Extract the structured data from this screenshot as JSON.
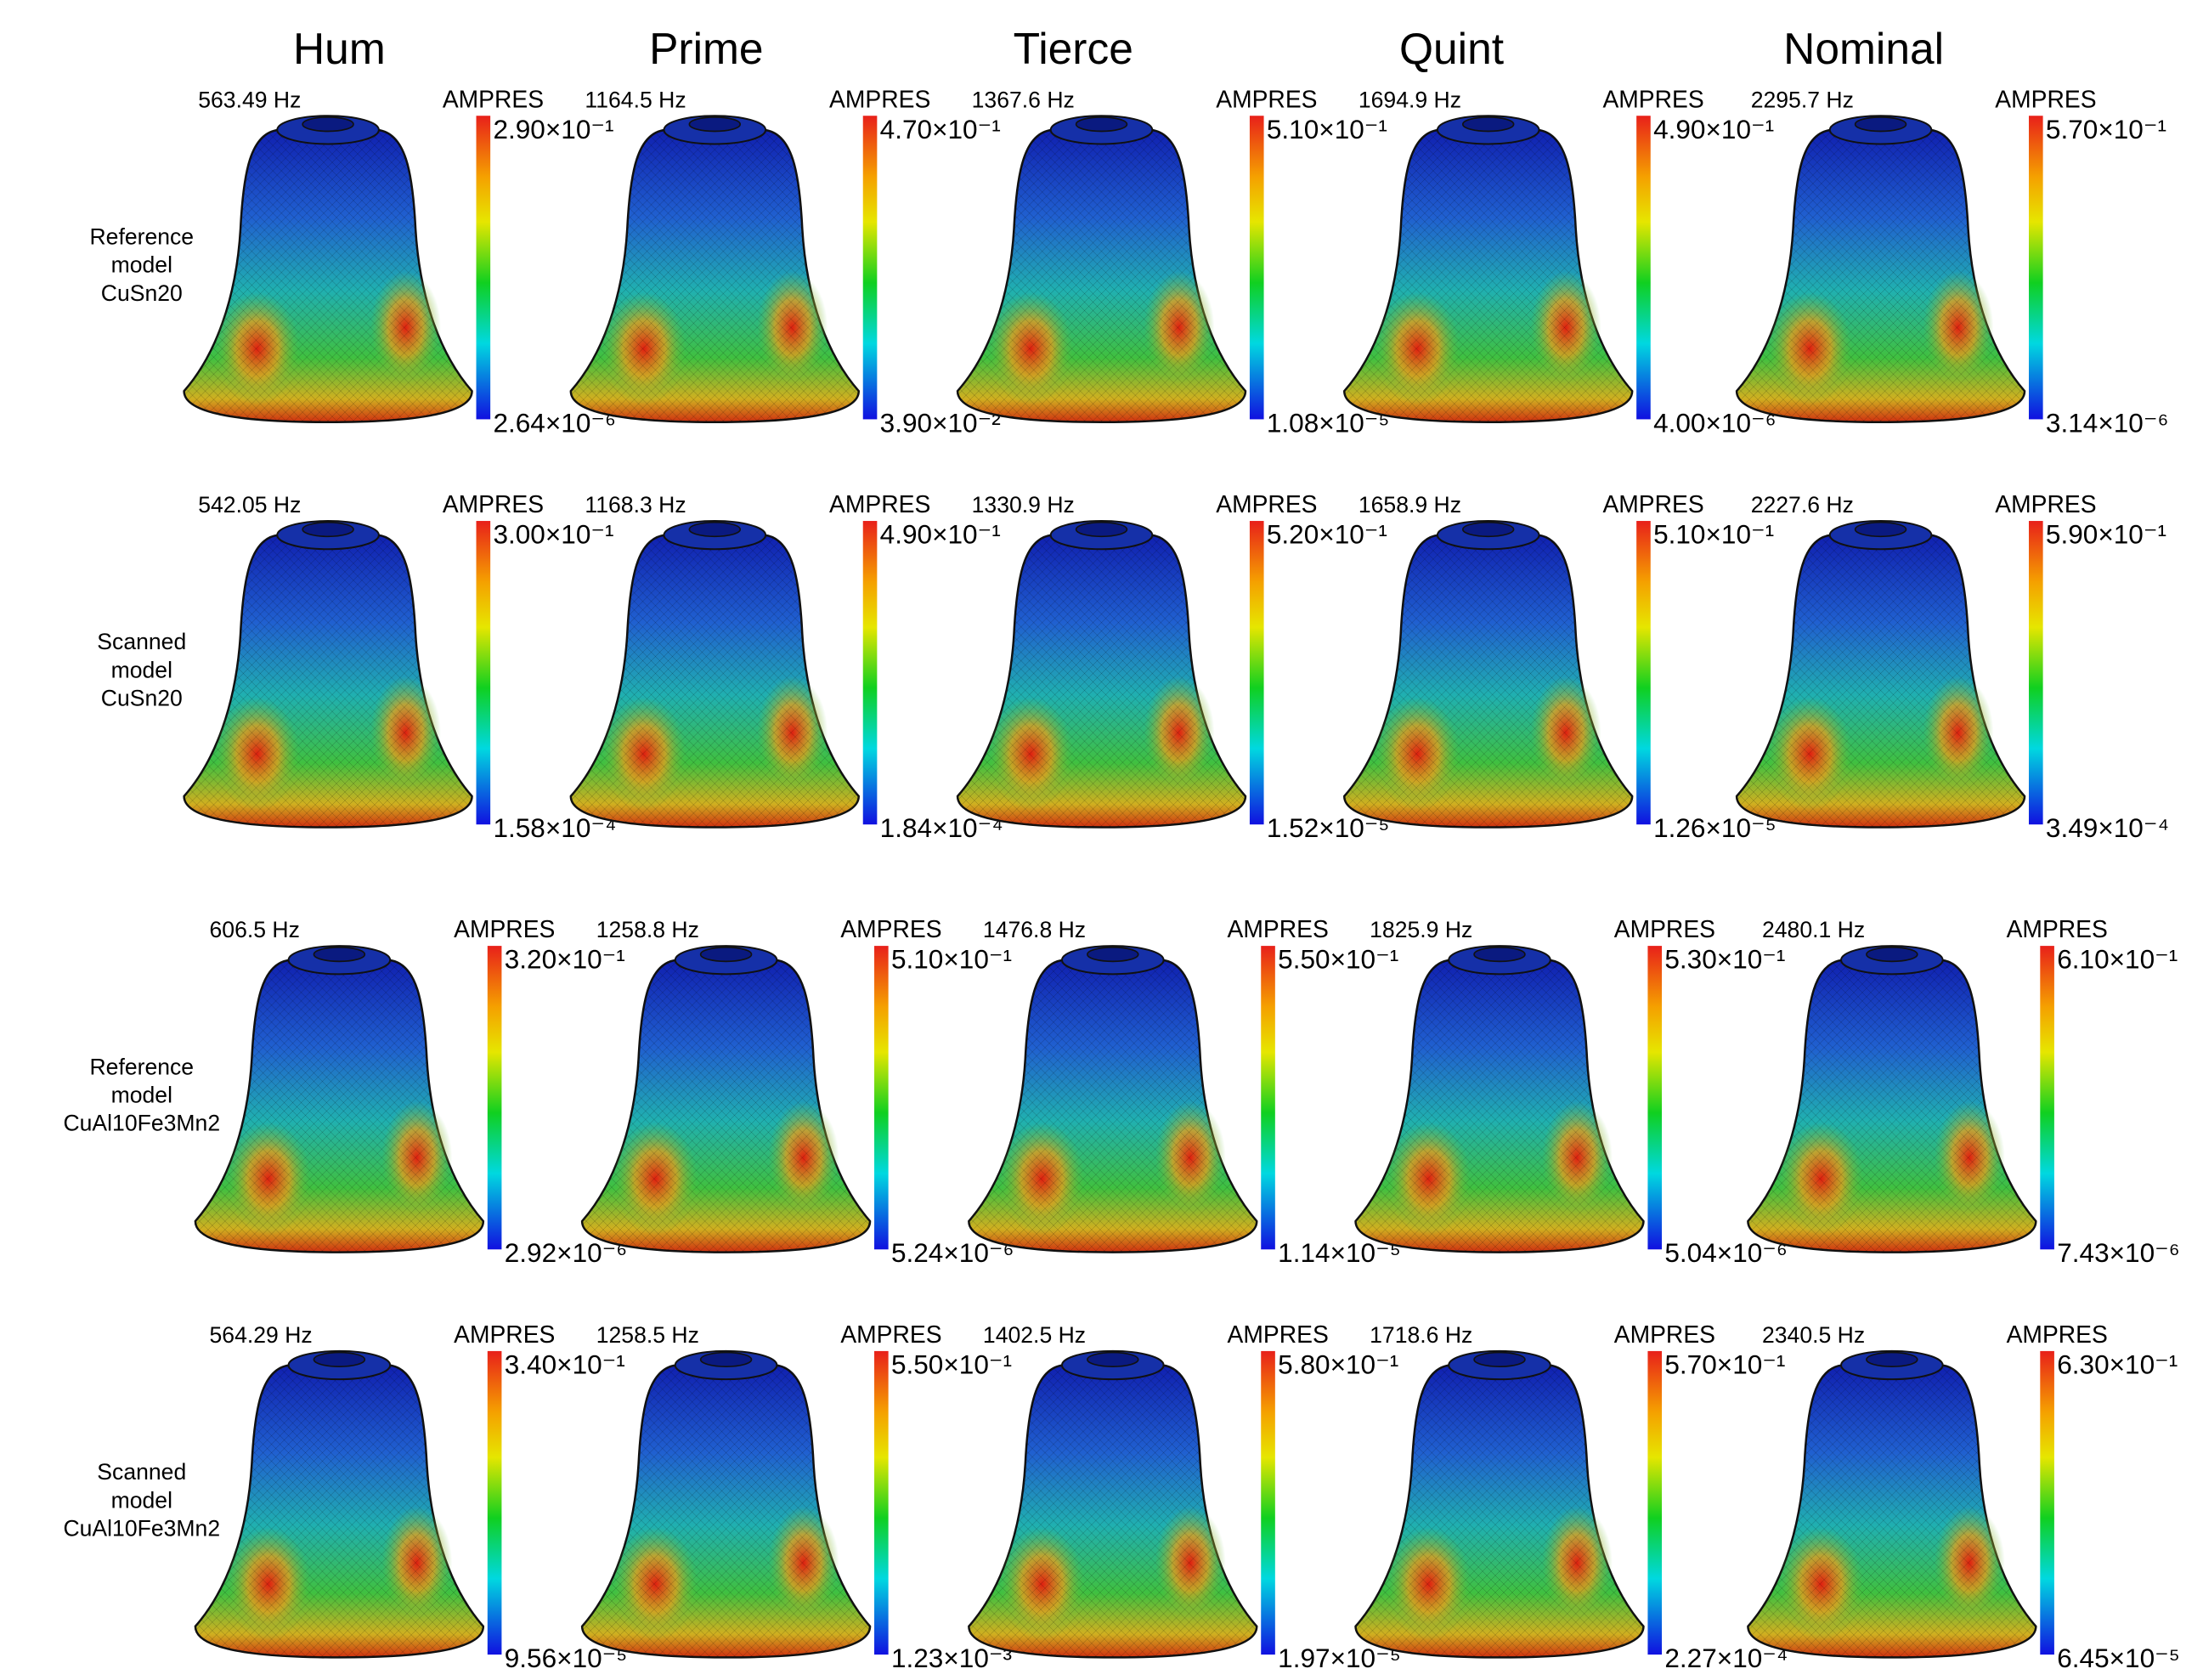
{
  "columns": [
    "Hum",
    "Prime",
    "Tierce",
    "Quint",
    "Nominal"
  ],
  "rows": [
    {
      "label": [
        "Reference",
        "model",
        "CuSn20"
      ],
      "cells": [
        {
          "frequency": "563.49 Hz",
          "unit": "AMPRES",
          "max": "2.90×10⁻¹",
          "min": "2.64×10⁻⁶"
        },
        {
          "frequency": "1164.5 Hz",
          "unit": "AMPRES",
          "max": "4.70×10⁻¹",
          "min": "3.90×10⁻²"
        },
        {
          "frequency": "1367.6 Hz",
          "unit": "AMPRES",
          "max": "5.10×10⁻¹",
          "min": "1.08×10⁻⁵"
        },
        {
          "frequency": "1694.9 Hz",
          "unit": "AMPRES",
          "max": "4.90×10⁻¹",
          "min": "4.00×10⁻⁶"
        },
        {
          "frequency": "2295.7 Hz",
          "unit": "AMPRES",
          "max": "5.70×10⁻¹",
          "min": "3.14×10⁻⁶"
        }
      ]
    },
    {
      "label": [
        "Scanned",
        "model",
        "CuSn20"
      ],
      "cells": [
        {
          "frequency": "542.05 Hz",
          "unit": "AMPRES",
          "max": "3.00×10⁻¹",
          "min": "1.58×10⁻⁴"
        },
        {
          "frequency": "1168.3 Hz",
          "unit": "AMPRES",
          "max": "4.90×10⁻¹",
          "min": "1.84×10⁻⁴"
        },
        {
          "frequency": "1330.9 Hz",
          "unit": "AMPRES",
          "max": "5.20×10⁻¹",
          "min": "1.52×10⁻⁵"
        },
        {
          "frequency": "1658.9 Hz",
          "unit": "AMPRES",
          "max": "5.10×10⁻¹",
          "min": "1.26×10⁻⁵"
        },
        {
          "frequency": "2227.6 Hz",
          "unit": "AMPRES",
          "max": "5.90×10⁻¹",
          "min": "3.49×10⁻⁴"
        }
      ]
    },
    {
      "label": [
        "Reference",
        "model",
        "CuAl10Fe3Mn2"
      ],
      "cells": [
        {
          "frequency": "606.5 Hz",
          "unit": "AMPRES",
          "max": "3.20×10⁻¹",
          "min": "2.92×10⁻⁶"
        },
        {
          "frequency": "1258.8 Hz",
          "unit": "AMPRES",
          "max": "5.10×10⁻¹",
          "min": "5.24×10⁻⁶"
        },
        {
          "frequency": "1476.8 Hz",
          "unit": "AMPRES",
          "max": "5.50×10⁻¹",
          "min": "1.14×10⁻⁵"
        },
        {
          "frequency": "1825.9 Hz",
          "unit": "AMPRES",
          "max": "5.30×10⁻¹",
          "min": "5.04×10⁻⁶"
        },
        {
          "frequency": "2480.1 Hz",
          "unit": "AMPRES",
          "max": "6.10×10⁻¹",
          "min": "7.43×10⁻⁶"
        }
      ]
    },
    {
      "label": [
        "Scanned",
        "model",
        "CuAl10Fe3Mn2"
      ],
      "cells": [
        {
          "frequency": "564.29 Hz",
          "unit": "AMPRES",
          "max": "3.40×10⁻¹",
          "min": "9.56×10⁻⁵"
        },
        {
          "frequency": "1258.5 Hz",
          "unit": "AMPRES",
          "max": "5.50×10⁻¹",
          "min": "1.23×10⁻³"
        },
        {
          "frequency": "1402.5 Hz",
          "unit": "AMPRES",
          "max": "5.80×10⁻¹",
          "min": "1.97×10⁻⁵"
        },
        {
          "frequency": "1718.6 Hz",
          "unit": "AMPRES",
          "max": "5.70×10⁻¹",
          "min": "2.27×10⁻⁴"
        },
        {
          "frequency": "2340.5 Hz",
          "unit": "AMPRES",
          "max": "6.30×10⁻¹",
          "min": "6.45×10⁻⁵"
        }
      ]
    }
  ]
}
